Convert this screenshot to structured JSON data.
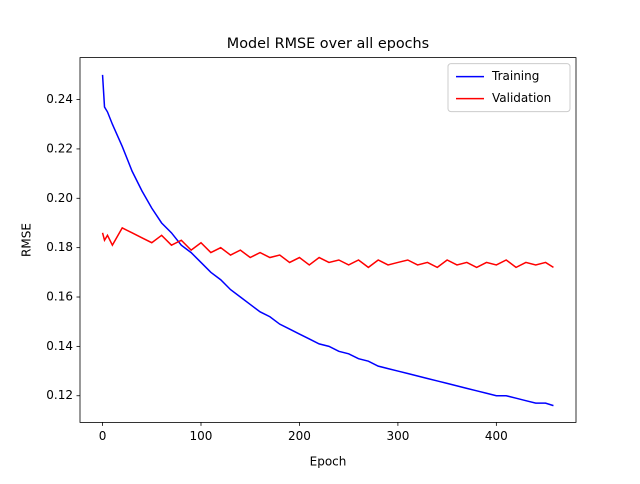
{
  "chart_data": {
    "type": "line",
    "title": "Model RMSE over all epochs",
    "x_label": "Epoch",
    "y_label": "RMSE",
    "x": [
      0,
      2,
      5,
      10,
      20,
      30,
      40,
      50,
      60,
      70,
      80,
      90,
      100,
      110,
      120,
      130,
      140,
      150,
      160,
      170,
      180,
      190,
      200,
      210,
      220,
      230,
      240,
      250,
      260,
      270,
      280,
      290,
      300,
      310,
      320,
      330,
      340,
      350,
      360,
      370,
      380,
      390,
      400,
      410,
      420,
      430,
      440,
      450,
      458
    ],
    "series": [
      {
        "name": "Training",
        "color": "#0000ff",
        "values": [
          0.25,
          0.237,
          0.235,
          0.23,
          0.221,
          0.211,
          0.203,
          0.196,
          0.19,
          0.186,
          0.181,
          0.178,
          0.174,
          0.17,
          0.167,
          0.163,
          0.16,
          0.157,
          0.154,
          0.152,
          0.149,
          0.147,
          0.145,
          0.143,
          0.141,
          0.14,
          0.138,
          0.137,
          0.135,
          0.134,
          0.132,
          0.131,
          0.13,
          0.129,
          0.128,
          0.127,
          0.126,
          0.125,
          0.124,
          0.123,
          0.122,
          0.121,
          0.12,
          0.12,
          0.119,
          0.118,
          0.117,
          0.117,
          0.116
        ]
      },
      {
        "name": "Validation",
        "color": "#ff0000",
        "values": [
          0.186,
          0.183,
          0.185,
          0.181,
          0.188,
          0.186,
          0.184,
          0.182,
          0.185,
          0.181,
          0.183,
          0.179,
          0.182,
          0.178,
          0.18,
          0.177,
          0.179,
          0.176,
          0.178,
          0.176,
          0.177,
          0.174,
          0.176,
          0.173,
          0.176,
          0.174,
          0.175,
          0.173,
          0.175,
          0.172,
          0.175,
          0.173,
          0.174,
          0.175,
          0.173,
          0.174,
          0.172,
          0.175,
          0.173,
          0.174,
          0.172,
          0.174,
          0.173,
          0.175,
          0.172,
          0.174,
          0.173,
          0.174,
          0.172
        ]
      }
    ],
    "xlim": [
      -22.9,
      480.9
    ],
    "ylim": [
      0.1092,
      0.257
    ],
    "xticks": [
      0,
      100,
      200,
      300,
      400
    ],
    "yticks": [
      0.12,
      0.14,
      0.16,
      0.18,
      {
        "value": 0.2,
        "label": "0.20"
      },
      0.22,
      0.24
    ],
    "legend": "upper right"
  }
}
